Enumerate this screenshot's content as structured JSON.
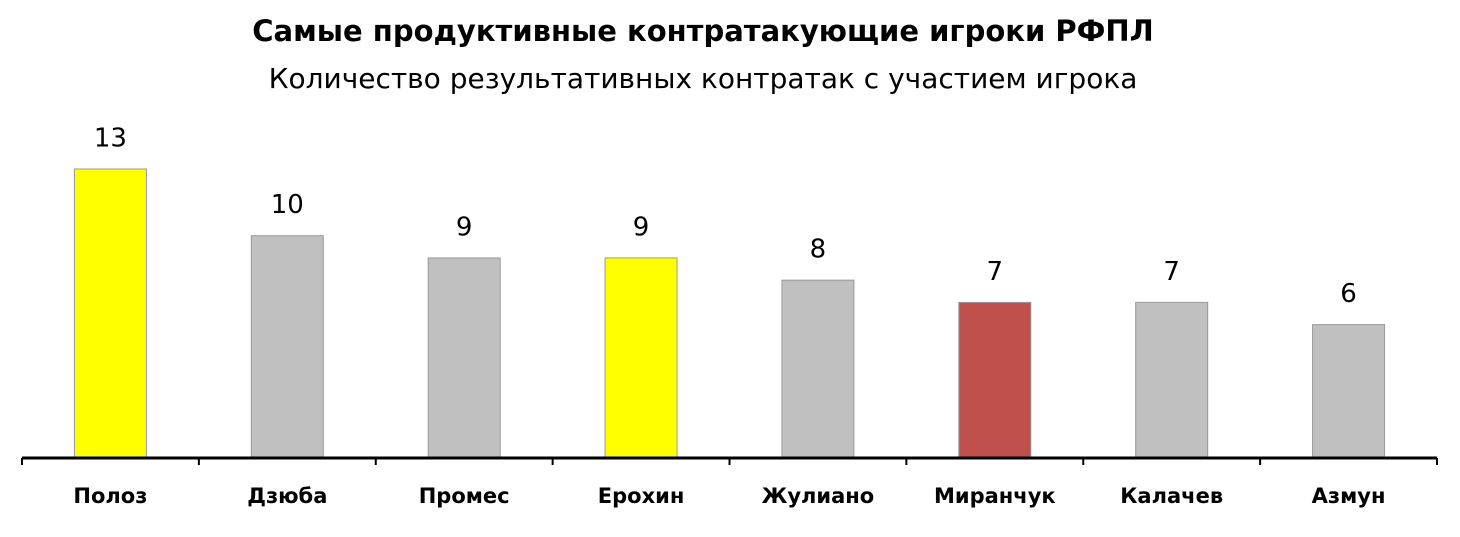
{
  "chart_data": {
    "type": "bar",
    "title": "Самые продуктивные контратакующие игроки РФПЛ",
    "subtitle": "Количество результативных контратак с участием игрока",
    "categories": [
      "Полоз",
      "Дзюба",
      "Промес",
      "Ерохин",
      "Жулиано",
      "Миранчук",
      "Калачев",
      "Азмун"
    ],
    "values": [
      13,
      10,
      9,
      9,
      8,
      7,
      7,
      6
    ],
    "colors": [
      "#ffff00",
      "#c0c0c0",
      "#c0c0c0",
      "#ffff00",
      "#c0c0c0",
      "#c0504d",
      "#c0c0c0",
      "#c0c0c0"
    ]
  }
}
